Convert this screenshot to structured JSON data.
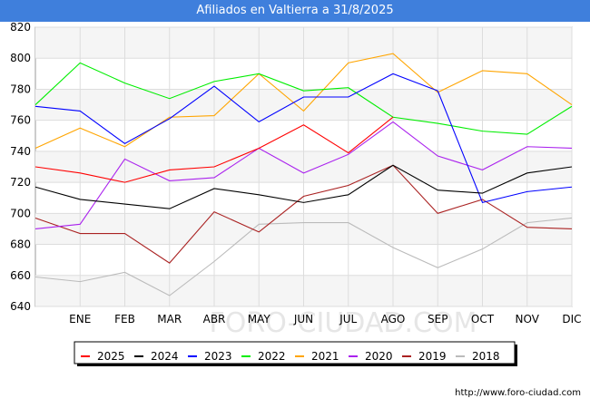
{
  "title": "Afiliados en Valtierra a 31/8/2025",
  "source": "http://www.foro-ciudad.com",
  "watermark": "FORO-CIUDAD.COM",
  "chart_data": {
    "type": "line",
    "title": "Afiliados en Valtierra a 31/8/2025",
    "xlabel": "",
    "ylabel": "",
    "categories": [
      "",
      "ENE",
      "FEB",
      "MAR",
      "ABR",
      "MAY",
      "JUN",
      "JUL",
      "AGO",
      "SEP",
      "OCT",
      "NOV",
      "DIC"
    ],
    "ylim": [
      640,
      820
    ],
    "yticks": [
      640,
      660,
      680,
      700,
      720,
      740,
      760,
      780,
      800,
      820
    ],
    "grid": true,
    "legend_position": "bottom",
    "series": [
      {
        "name": "2025",
        "color": "#ff0000",
        "values": [
          730,
          726,
          720,
          728,
          730,
          742,
          757,
          739,
          762,
          null,
          null,
          null,
          null
        ]
      },
      {
        "name": "2024",
        "color": "#000000",
        "values": [
          717,
          709,
          706,
          703,
          716,
          712,
          707,
          712,
          731,
          715,
          713,
          726,
          730
        ]
      },
      {
        "name": "2023",
        "color": "#0000ff",
        "values": [
          769,
          766,
          745,
          761,
          782,
          759,
          775,
          775,
          790,
          779,
          707,
          714,
          717
        ]
      },
      {
        "name": "2022",
        "color": "#00ee00",
        "values": [
          770,
          797,
          784,
          774,
          785,
          790,
          779,
          781,
          762,
          758,
          753,
          751,
          769
        ]
      },
      {
        "name": "2021",
        "color": "#ffa500",
        "values": [
          742,
          755,
          743,
          762,
          763,
          790,
          766,
          797,
          803,
          778,
          792,
          790,
          770
        ]
      },
      {
        "name": "2020",
        "color": "#aa22ee",
        "values": [
          690,
          693,
          735,
          721,
          723,
          742,
          726,
          738,
          759,
          737,
          728,
          743,
          742
        ]
      },
      {
        "name": "2019",
        "color": "#aa2222",
        "values": [
          697,
          687,
          687,
          668,
          701,
          688,
          711,
          718,
          731,
          700,
          709,
          691,
          690
        ]
      },
      {
        "name": "2018",
        "color": "#bbbbbb",
        "values": [
          659,
          656,
          662,
          647,
          669,
          693,
          694,
          694,
          678,
          665,
          677,
          694,
          697
        ]
      }
    ]
  }
}
